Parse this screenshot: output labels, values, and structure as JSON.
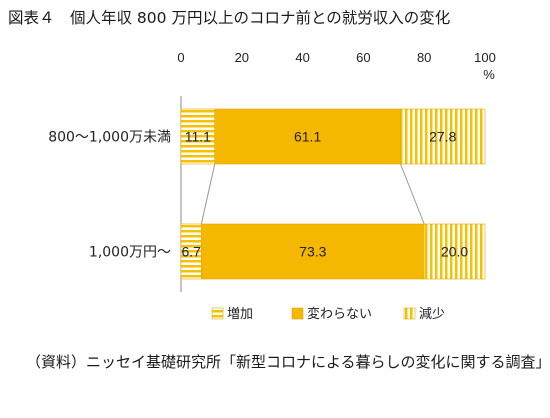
{
  "figure_title": "図表４　個人年収 800 万円以上のコロナ前との就労収入の変化",
  "source": {
    "label": "（資料）",
    "text": "ニッセイ基礎研究所「新型コロナによる暮らしの変化に関する調査」"
  },
  "chart_data": {
    "type": "bar",
    "orientation": "horizontal",
    "stacked": true,
    "title": "",
    "xlabel": "",
    "x_unit": "%",
    "xlim": [
      0,
      100
    ],
    "x_ticks": [
      0,
      20,
      40,
      60,
      80,
      100
    ],
    "categories": [
      "800～1,000万未満",
      "1,000万円～"
    ],
    "series": [
      {
        "name": "増加",
        "values": [
          11.1,
          6.7
        ],
        "color": "#F5C200",
        "pattern": "horizontal-stripes"
      },
      {
        "name": "変わらない",
        "values": [
          61.1,
          73.3
        ],
        "color": "#F5B800",
        "pattern": "solid"
      },
      {
        "name": "減少",
        "values": [
          27.8,
          20.0
        ],
        "color": "#F5C200",
        "pattern": "vertical-stripes"
      }
    ],
    "data_labels": [
      [
        "11.1",
        "61.1",
        "27.8"
      ],
      [
        "6.7",
        "73.3",
        "20.0"
      ]
    ],
    "series_lines": true,
    "legend_position": "bottom",
    "grid": false
  }
}
